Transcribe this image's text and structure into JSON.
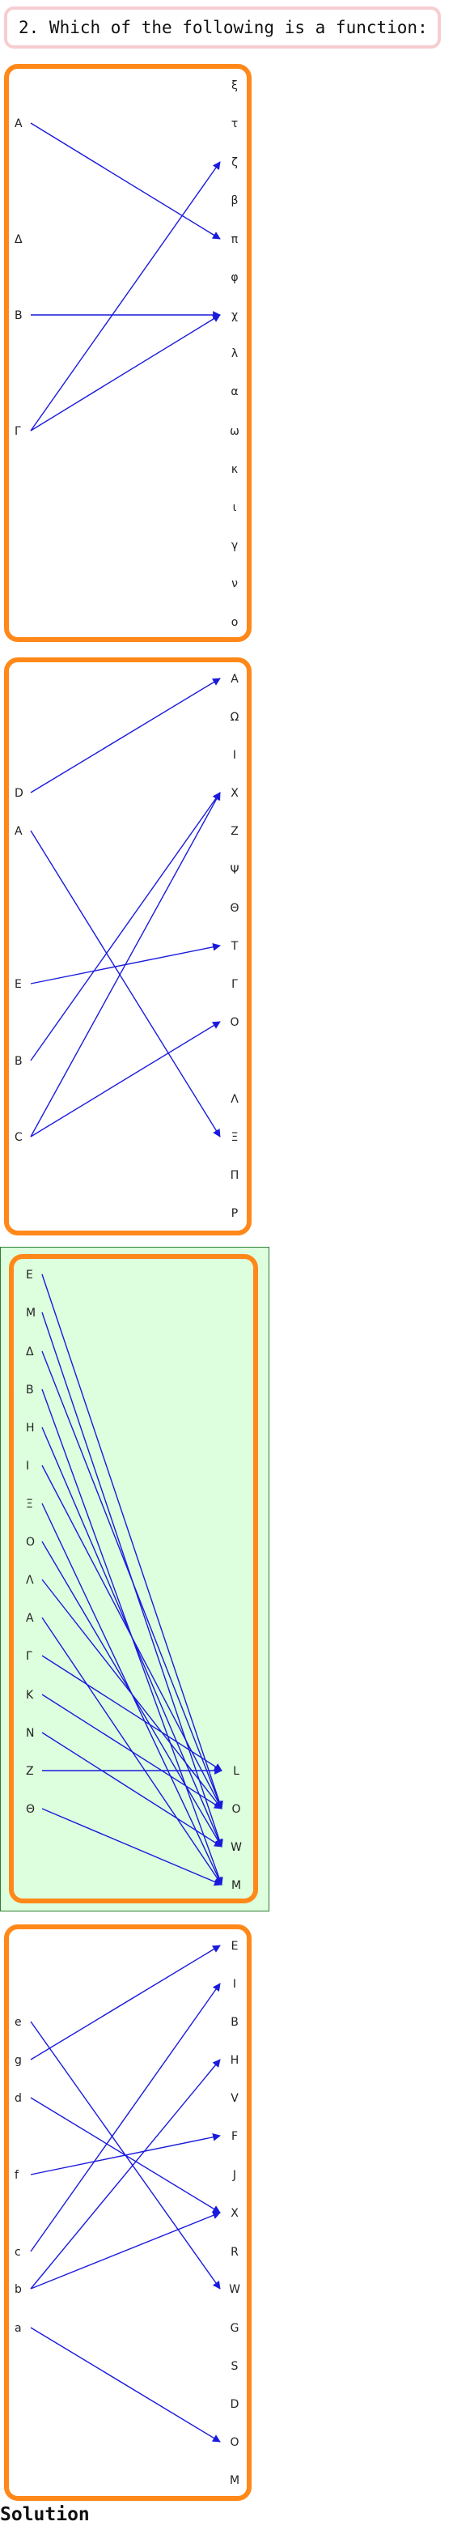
{
  "question": {
    "text": "2. Which of the following is a function:"
  },
  "solution": {
    "label": "Solution"
  },
  "colors": {
    "frame": "#ff8819",
    "arrow": "#1a1add",
    "highlight_fill": "#ddffdd",
    "highlight_border": "#2e7d32"
  },
  "diagrams": [
    {
      "name": "diagram-1",
      "highlighted": false,
      "domain": [
        "A",
        "Δ",
        "B",
        "Γ"
      ],
      "codomain": [
        "ξ",
        "τ",
        "ζ",
        "β",
        "π",
        "φ",
        "χ",
        "λ",
        "α",
        "ω",
        "κ",
        "ι",
        "γ",
        "ν",
        "ο"
      ],
      "mapping": [
        [
          "A",
          "π"
        ],
        [
          "B",
          "χ"
        ],
        [
          "Γ",
          "ζ"
        ],
        [
          "Γ",
          "χ"
        ]
      ]
    },
    {
      "name": "diagram-2",
      "highlighted": false,
      "domain": [
        "D",
        "A",
        "E",
        "B",
        "C"
      ],
      "codomain": [
        "A",
        "Ω",
        "I",
        "X",
        "Z",
        "Ψ",
        "Θ",
        "T",
        "Γ",
        "O",
        "Λ",
        "Ξ",
        "Π",
        "P"
      ],
      "mapping": [
        [
          "D",
          "A"
        ],
        [
          "A",
          "Ξ"
        ],
        [
          "E",
          "T"
        ],
        [
          "B",
          "X"
        ],
        [
          "C",
          "X"
        ],
        [
          "C",
          "O"
        ]
      ]
    },
    {
      "name": "diagram-3",
      "highlighted": true,
      "domain": [
        "E",
        "M",
        "Δ",
        "B",
        "H",
        "I",
        "Ξ",
        "O",
        "Λ",
        "A",
        "Γ",
        "K",
        "N",
        "Z",
        "Θ"
      ],
      "codomain": [
        "L",
        "O",
        "W",
        "M"
      ],
      "mapping": [
        [
          "E",
          "O"
        ],
        [
          "M",
          "W"
        ],
        [
          "Δ",
          "O"
        ],
        [
          "B",
          "M"
        ],
        [
          "H",
          "W"
        ],
        [
          "I",
          "O"
        ],
        [
          "Ξ",
          "M"
        ],
        [
          "O",
          "W"
        ],
        [
          "Λ",
          "O"
        ],
        [
          "A",
          "M"
        ],
        [
          "Γ",
          "L"
        ],
        [
          "K",
          "O"
        ],
        [
          "N",
          "W"
        ],
        [
          "Z",
          "L"
        ],
        [
          "Θ",
          "M"
        ]
      ]
    },
    {
      "name": "diagram-4",
      "highlighted": false,
      "domain": [
        "e",
        "g",
        "d",
        "f",
        "c",
        "b",
        "a"
      ],
      "codomain": [
        "E",
        "I",
        "B",
        "H",
        "V",
        "F",
        "J",
        "X",
        "R",
        "W",
        "G",
        "S",
        "D",
        "O",
        "M"
      ],
      "mapping": [
        [
          "e",
          "W"
        ],
        [
          "g",
          "E"
        ],
        [
          "d",
          "X"
        ],
        [
          "f",
          "F"
        ],
        [
          "c",
          "I"
        ],
        [
          "b",
          "H"
        ],
        [
          "b",
          "X"
        ],
        [
          "a",
          "O"
        ]
      ]
    }
  ]
}
